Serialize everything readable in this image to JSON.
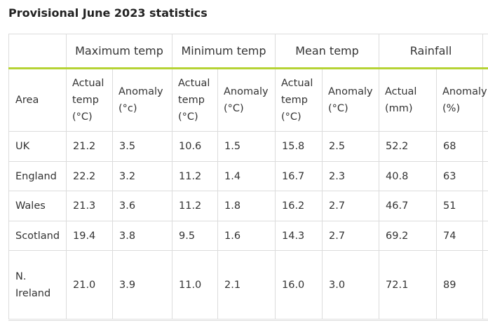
{
  "title": "Provisional June 2023 statistics",
  "groups": [
    "Maximum temp",
    "Minimum temp",
    "Mean temp",
    "Rainfall"
  ],
  "subheaders": {
    "area": "Area",
    "max_actual": [
      "Actual",
      "temp",
      "(°C)"
    ],
    "max_anomaly": [
      "Anomaly",
      "(°c)"
    ],
    "min_actual": [
      "Actual",
      "temp",
      "(°C)"
    ],
    "min_anomaly": [
      "Anomaly",
      "(°C)"
    ],
    "mean_actual": [
      "Actual",
      "temp",
      "(°C)"
    ],
    "mean_anomaly": [
      "Anomaly",
      "(°C)"
    ],
    "rain_actual": [
      "Actual",
      "(mm)"
    ],
    "rain_anomaly": [
      "Anomaly",
      "(%)"
    ]
  },
  "rows": [
    {
      "area": [
        "UK"
      ],
      "values": [
        "21.2",
        "3.5",
        "10.6",
        "1.5",
        "15.8",
        "2.5",
        "52.2",
        "68"
      ]
    },
    {
      "area": [
        "England"
      ],
      "values": [
        "22.2",
        "3.2",
        "11.2",
        "1.4",
        "16.7",
        "2.3",
        "40.8",
        "63"
      ]
    },
    {
      "area": [
        "Wales"
      ],
      "values": [
        "21.3",
        "3.6",
        "11.2",
        "1.8",
        "16.2",
        "2.7",
        "46.7",
        "51"
      ]
    },
    {
      "area": [
        "Scotland"
      ],
      "values": [
        "19.4",
        "3.8",
        "9.5",
        "1.6",
        "14.3",
        "2.7",
        "69.2",
        "74"
      ]
    },
    {
      "area": [
        "N.",
        "Ireland"
      ],
      "values": [
        "21.0",
        "3.9",
        "11.0",
        "2.1",
        "16.0",
        "3.0",
        "72.1",
        "89"
      ]
    }
  ]
}
